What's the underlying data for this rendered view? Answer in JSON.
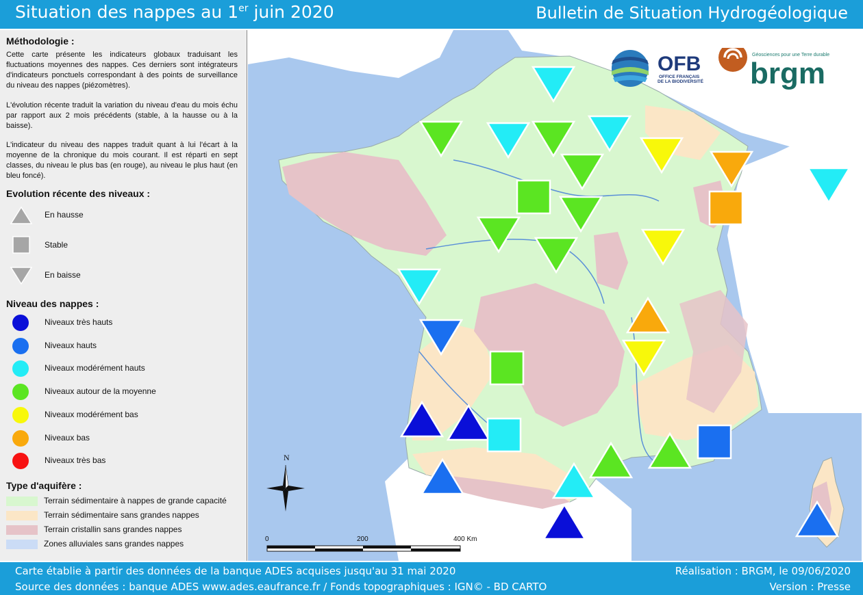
{
  "header": {
    "title_main": "Situation des nappes au 1",
    "title_sup": "er",
    "title_end": " juin 2020",
    "bulletin": "Bulletin de Situation Hydrogéologique"
  },
  "methodologie": {
    "heading": "Méthodologie :",
    "p1": "Cette carte présente les indicateurs globaux traduisant les fluctuations moyennes des nappes. Ces derniers sont intégrateurs d'indicateurs ponctuels correspondant à des points de surveillance du niveau des nappes (piézomètres).",
    "p2": "L'évolution récente traduit la variation du niveau d'eau du mois échu par rapport aux 2 mois précédents (stable, à la hausse ou à la baisse).",
    "p3": "L'indicateur du niveau des nappes traduit quant à lui l'écart à la moyenne de la chronique du mois courant. Il est réparti en sept classes, du niveau le plus bas (en rouge), au niveau le plus haut (en bleu foncé)."
  },
  "evolution": {
    "heading": "Evolution récente des niveaux :",
    "items": [
      {
        "label": "En hausse",
        "shape": "up"
      },
      {
        "label": "Stable",
        "shape": "square"
      },
      {
        "label": "En baisse",
        "shape": "down"
      }
    ],
    "symbol_color": "#a6a6a6"
  },
  "niveau": {
    "heading": "Niveau des nappes :",
    "items": [
      {
        "label": "Niveaux très hauts",
        "color": "#0a0fd8"
      },
      {
        "label": "Niveaux hauts",
        "color": "#1a6ff0"
      },
      {
        "label": "Niveaux modérément hauts",
        "color": "#23ecf6"
      },
      {
        "label": "Niveaux autour de la moyenne",
        "color": "#5be522"
      },
      {
        "label": "Niveaux modérément bas",
        "color": "#f8f80a"
      },
      {
        "label": "Niveaux bas",
        "color": "#f9a90c"
      },
      {
        "label": "Niveaux très bas",
        "color": "#f71212"
      }
    ]
  },
  "aquifere": {
    "heading": "Type d'aquifère :",
    "items": [
      {
        "label": "Terrain sédimentaire à nappes de grande capacité",
        "color": "#d8f7cf"
      },
      {
        "label": "Terrain sédimentaire sans grandes nappes",
        "color": "#fbe6c6"
      },
      {
        "label": "Terrain cristallin sans grandes nappes",
        "color": "#e6c3c8"
      },
      {
        "label": "Zones alluviales sans grandes nappes",
        "color": "#cbdcf6"
      }
    ]
  },
  "map": {
    "north_label": "N",
    "scale_labels": [
      "0",
      "200",
      "400 Km"
    ],
    "sea_color": "#a9c8ee",
    "foreign_land_color": "#ffffff",
    "symbols": [
      {
        "shape": "down",
        "level": 2
      },
      {
        "shape": "down",
        "level": 3
      },
      {
        "shape": "down",
        "level": 2
      },
      {
        "shape": "down",
        "level": 3
      },
      {
        "shape": "down",
        "level": 2
      },
      {
        "shape": "down",
        "level": 4
      },
      {
        "shape": "down",
        "level": 5
      },
      {
        "shape": "down",
        "level": 2
      },
      {
        "shape": "down",
        "level": 3
      },
      {
        "shape": "square",
        "level": 3
      },
      {
        "shape": "square",
        "level": 5
      },
      {
        "shape": "down",
        "level": 3
      },
      {
        "shape": "down",
        "level": 3
      },
      {
        "shape": "down",
        "level": 3
      },
      {
        "shape": "down",
        "level": 4
      },
      {
        "shape": "down",
        "level": 2
      },
      {
        "shape": "up",
        "level": 5
      },
      {
        "shape": "down",
        "level": 1
      },
      {
        "shape": "down",
        "level": 4
      },
      {
        "shape": "square",
        "level": 3
      },
      {
        "shape": "up",
        "level": 0
      },
      {
        "shape": "up",
        "level": 0
      },
      {
        "shape": "square",
        "level": 2
      },
      {
        "shape": "up",
        "level": 1
      },
      {
        "shape": "up",
        "level": 3
      },
      {
        "shape": "up",
        "level": 3
      },
      {
        "shape": "up",
        "level": 2
      },
      {
        "shape": "square",
        "level": 1
      },
      {
        "shape": "up",
        "level": 0
      },
      {
        "shape": "up",
        "level": 1
      }
    ]
  },
  "logos": {
    "ofb": "OFB",
    "ofb_sub1": "OFFICE FRANÇAIS",
    "ofb_sub2": "DE LA BIODIVERSITÉ",
    "brgm": "brgm",
    "brgm_tag": "Géosciences pour une Terre durable"
  },
  "footer": {
    "line1": "Carte établie à partir des données de la banque ADES acquises jusqu'au 31 mai 2020",
    "line2": "Source des données : banque ADES www.ades.eaufrance.fr / Fonds topographiques : IGN© - BD CARTO",
    "realisation": "Réalisation : BRGM, le 09/06/2020",
    "version": "Version : Presse"
  }
}
